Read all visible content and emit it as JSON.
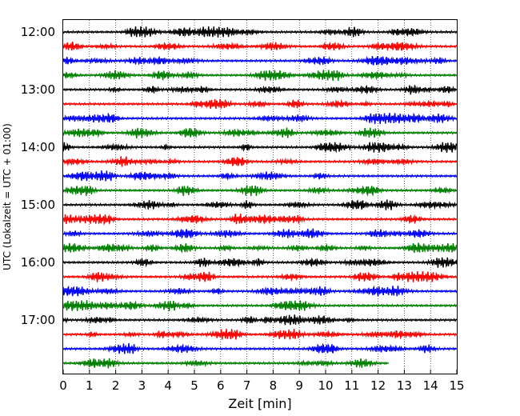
{
  "chart_data": {
    "type": "line",
    "xlabel": "Zeit  [min]",
    "ylabel": "UTC (Lokalzeit = UTC + 01:00)",
    "xlim": [
      0,
      15
    ],
    "x_ticks": [
      "0",
      "1",
      "2",
      "3",
      "4",
      "5",
      "6",
      "7",
      "8",
      "9",
      "10",
      "11",
      "12",
      "13",
      "14",
      "15"
    ],
    "y_ticks": [
      "12:00",
      "13:00",
      "14:00",
      "15:00",
      "16:00",
      "17:00"
    ],
    "vertical_grid": "dotted",
    "row_interval_minutes": 15,
    "rows": 24,
    "row_colors": [
      "#000000",
      "#ff0000",
      "#0000ff",
      "#008000"
    ],
    "last_trace_end_minute": 12.4
  }
}
